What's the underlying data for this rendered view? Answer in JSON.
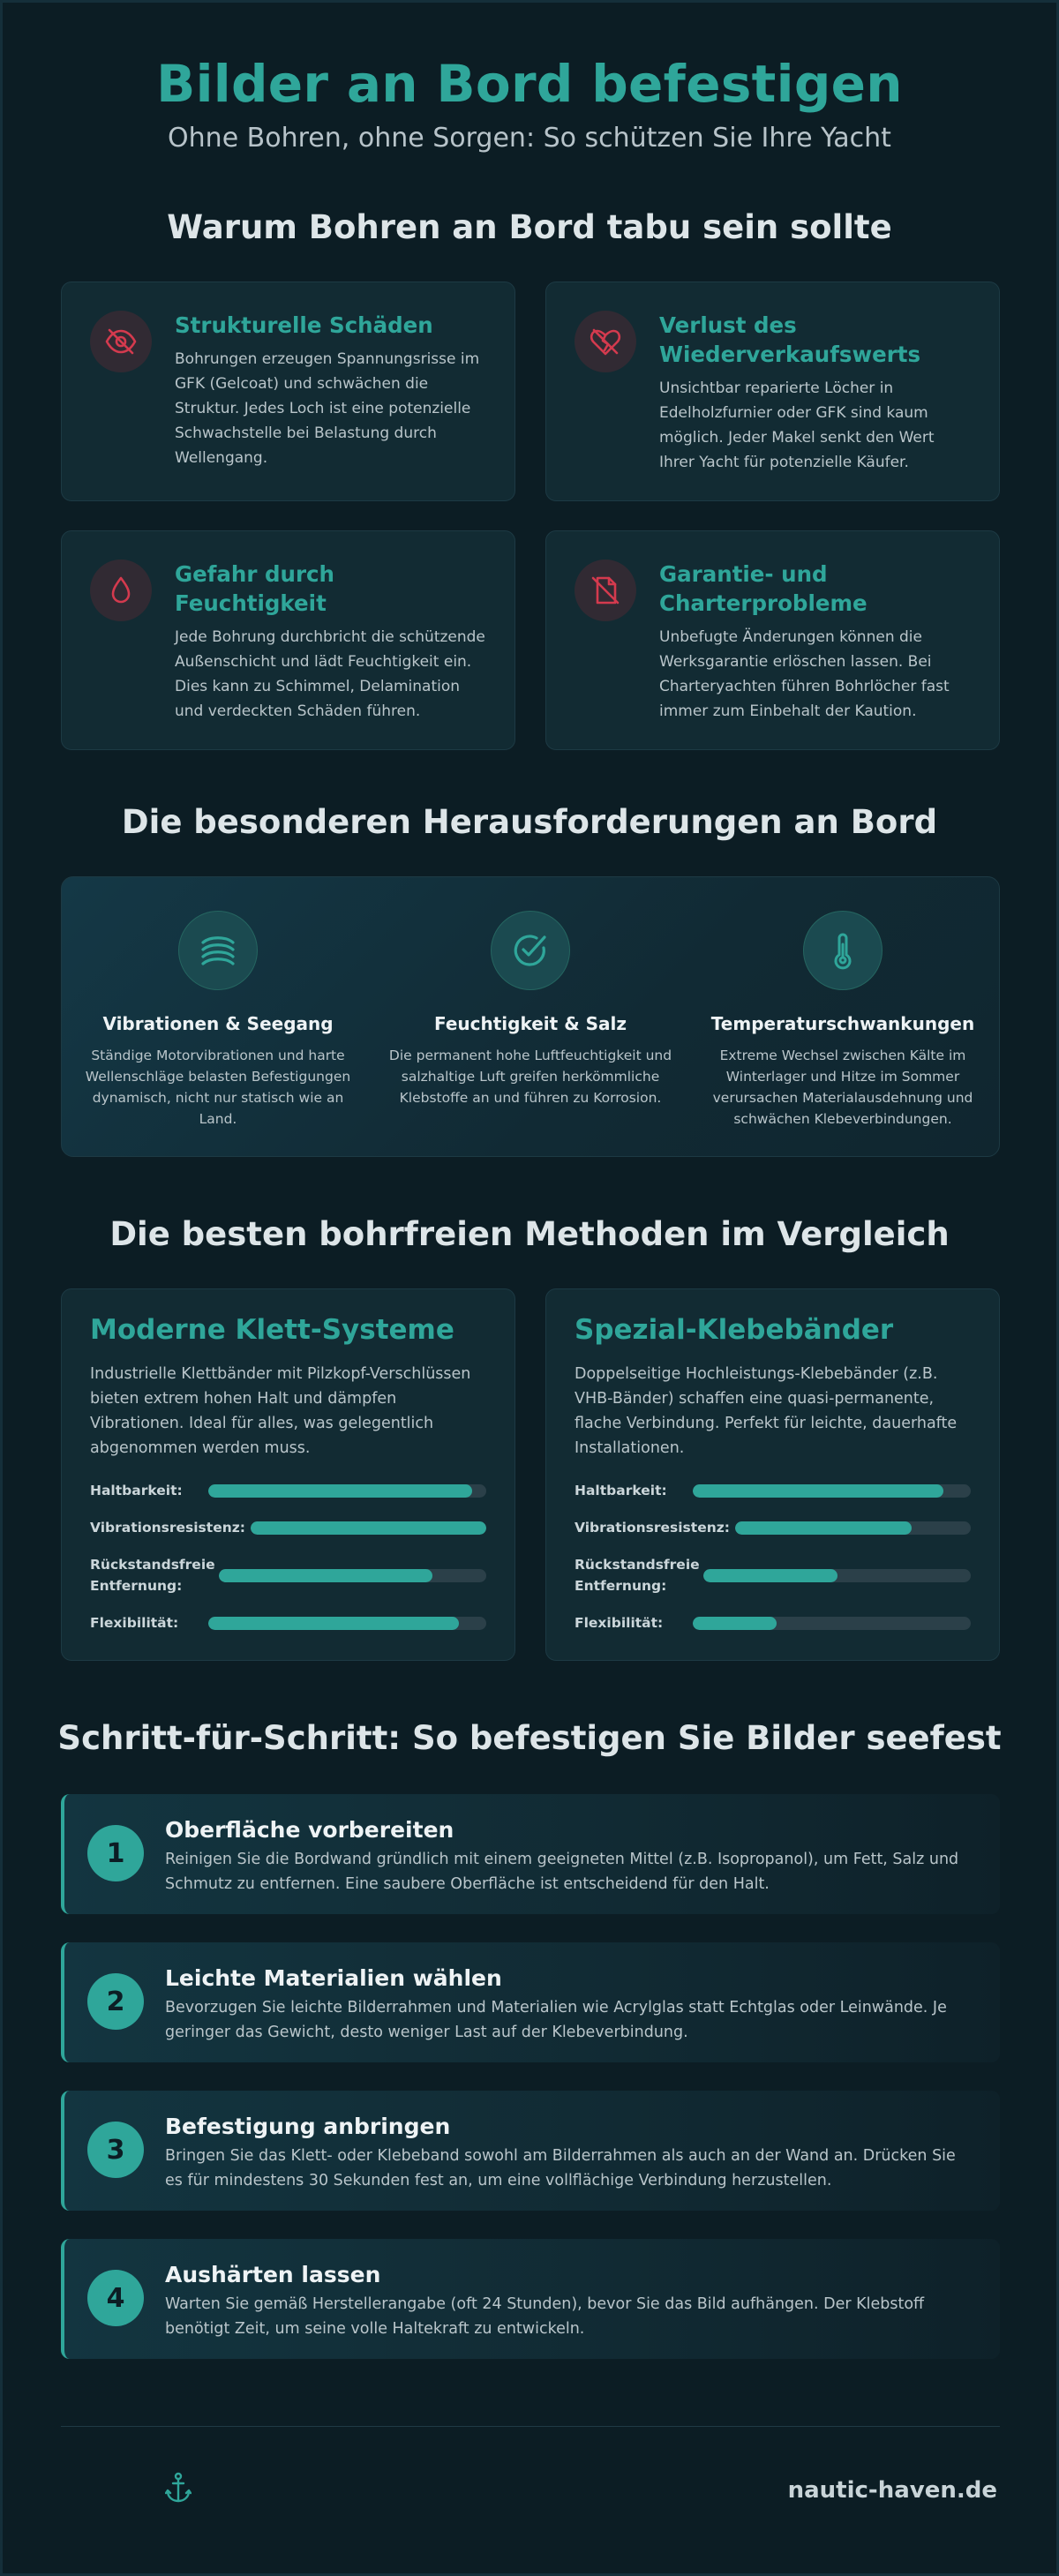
{
  "hero": {
    "title": "Bilder an Bord befestigen",
    "subtitle": "Ohne Bohren, ohne Sorgen: So schützen Sie Ihre Yacht"
  },
  "why": {
    "title": "Warum Bohren an Bord tabu sein sollte",
    "cards": [
      {
        "icon": "eye-slash-icon",
        "title": "Strukturelle Schäden",
        "text": "Bohrungen erzeugen Spannungsrisse im GFK (Gelcoat) und schwächen die Struktur. Jedes Loch ist eine potenzielle Schwachstelle bei Belastung durch Wellengang."
      },
      {
        "icon": "heart-crack-icon",
        "title": "Verlust des Wiederverkaufswerts",
        "text": "Unsichtbar reparierte Löcher in Edelholzfurnier oder GFK sind kaum möglich. Jeder Makel senkt den Wert Ihrer Yacht für potenzielle Käufer."
      },
      {
        "icon": "water-drop-icon",
        "title": "Gefahr durch Feuchtigkeit",
        "text": "Jede Bohrung durchbricht die schützende Außenschicht und lädt Feuchtigkeit ein. Dies kann zu Schimmel, Delamination und verdeckten Schäden führen."
      },
      {
        "icon": "document-slash-icon",
        "title": "Garantie- und Charterprobleme",
        "text": "Unbefugte Änderungen können die Werksgarantie erlöschen lassen. Bei Charteryachten führen Bohrlöcher fast immer zum Einbehalt der Kaution."
      }
    ],
    "accent_color": "#d43a4e"
  },
  "challenges": {
    "title": "Die besonderen Herausforderungen an Bord",
    "items": [
      {
        "icon": "waves-icon",
        "title": "Vibrationen & Seegang",
        "text": "Ständige Motorvibrationen und harte Wellenschläge belasten Befestigungen dynamisch, nicht nur statisch wie an Land."
      },
      {
        "icon": "check-circle-icon",
        "title": "Feuchtigkeit & Salz",
        "text": "Die permanent hohe Luftfeuchtigkeit und salzhaltige Luft greifen herkömmliche Klebstoffe an und führen zu Korrosion."
      },
      {
        "icon": "thermometer-icon",
        "title": "Temperaturschwankungen",
        "text": "Extreme Wechsel zwischen Kälte im Winterlager und Hitze im Sommer verursachen Materialausdehnung und schwächen Klebeverbindungen."
      }
    ]
  },
  "methods": {
    "title": "Die besten bohrfreien Methoden im Vergleich",
    "cards": [
      {
        "title": "Moderne Klett-Systeme",
        "text": "Industrielle Klettbänder mit Pilzkopf-Verschlüssen bieten extrem hohen Halt und dämpfen Vibrationen. Ideal für alles, was gelegentlich abgenommen werden muss.",
        "ratings": [
          {
            "label": "Haltbarkeit:",
            "value": 95
          },
          {
            "label": "Vibrationsresistenz:",
            "value": 100
          },
          {
            "label": "Rückstandsfreie Entfernung:",
            "value": 80
          },
          {
            "label": "Flexibilität:",
            "value": 90
          }
        ]
      },
      {
        "title": "Spezial-Klebebänder",
        "text": "Doppelseitige Hochleistungs-Klebebänder (z.B. VHB-Bänder) schaffen eine quasi-permanente, flache Verbindung. Perfekt für leichte, dauerhafte Installationen.",
        "ratings": [
          {
            "label": "Haltbarkeit:",
            "value": 90
          },
          {
            "label": "Vibrationsresistenz:",
            "value": 75
          },
          {
            "label": "Rückstandsfreie Entfernung:",
            "value": 50
          },
          {
            "label": "Flexibilität:",
            "value": 30
          }
        ]
      }
    ]
  },
  "steps": {
    "title": "Schritt-für-Schritt: So befestigen Sie Bilder seefest",
    "items": [
      {
        "num": "1",
        "title": "Oberfläche vorbereiten",
        "text": "Reinigen Sie die Bordwand gründlich mit einem geeigneten Mittel (z.B. Isopropanol), um Fett, Salz und Schmutz zu entfernen. Eine saubere Oberfläche ist entscheidend für den Halt."
      },
      {
        "num": "2",
        "title": "Leichte Materialien wählen",
        "text": "Bevorzugen Sie leichte Bilderrahmen und Materialien wie Acrylglas statt Echtglas oder Leinwände. Je geringer das Gewicht, desto weniger Last auf der Klebeverbindung."
      },
      {
        "num": "3",
        "title": "Befestigung anbringen",
        "text": "Bringen Sie das Klett- oder Klebeband sowohl am Bilderrahmen als auch an der Wand an. Drücken Sie es für mindestens 30 Sekunden fest an, um eine vollflächige Verbindung herzustellen."
      },
      {
        "num": "4",
        "title": "Aushärten lassen",
        "text": "Warten Sie gemäß Herstellerangabe (oft 24 Stunden), bevor Sie das Bild aufhängen. Der Klebstoff benötigt Zeit, um seine volle Haltekraft zu entwickeln."
      }
    ]
  },
  "footer": {
    "icon": "anchor-icon",
    "site": "nautic-haven.de"
  },
  "colors": {
    "background": "#0c1d24",
    "accent": "#2fa69a",
    "card": "#122b33",
    "warning": "#d43a4e"
  }
}
